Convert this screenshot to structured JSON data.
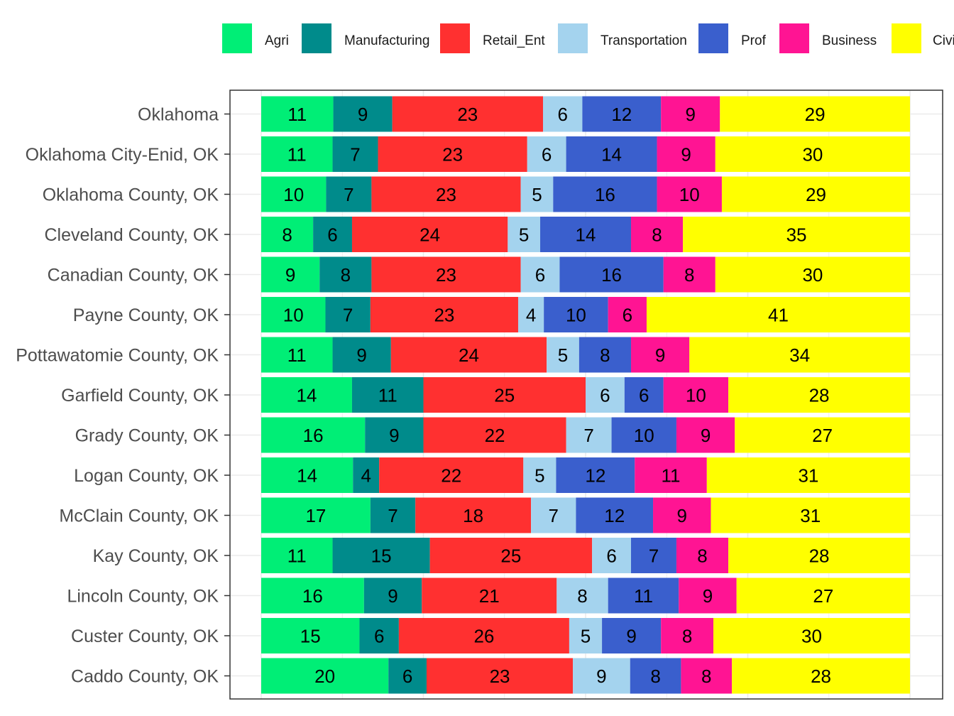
{
  "chart_data": {
    "type": "bar",
    "orientation": "horizontal",
    "stacked": true,
    "normalized": true,
    "title": "",
    "xlabel": "",
    "ylabel": "",
    "grid": true,
    "legend_position": "top",
    "categories": [
      "Oklahoma",
      "Oklahoma City-Enid, OK",
      "Oklahoma County, OK",
      "Cleveland County, OK",
      "Canadian County, OK",
      "Payne County, OK",
      "Pottawatomie County, OK",
      "Garfield County, OK",
      "Grady County, OK",
      "Logan County, OK",
      "McClain County, OK",
      "Kay County, OK",
      "Lincoln County, OK",
      "Custer County, OK",
      "Caddo County, OK"
    ],
    "series": [
      {
        "name": "Agri",
        "color": "#00EE76",
        "values": [
          11,
          11,
          10,
          8,
          9,
          10,
          11,
          14,
          16,
          14,
          17,
          11,
          16,
          15,
          20
        ]
      },
      {
        "name": "Manufacturing",
        "color": "#008B8B",
        "values": [
          9,
          7,
          7,
          6,
          8,
          7,
          9,
          11,
          9,
          4,
          7,
          15,
          9,
          6,
          6
        ]
      },
      {
        "name": "Retail_Ent",
        "color": "#FF3030",
        "values": [
          23,
          23,
          23,
          24,
          23,
          23,
          24,
          25,
          22,
          22,
          18,
          25,
          21,
          26,
          23
        ]
      },
      {
        "name": "Transportation",
        "color": "#A4D3EE",
        "values": [
          6,
          6,
          5,
          5,
          6,
          4,
          5,
          6,
          7,
          5,
          7,
          6,
          8,
          5,
          9
        ]
      },
      {
        "name": "Prof",
        "color": "#3A5FCD",
        "values": [
          12,
          14,
          16,
          14,
          16,
          10,
          8,
          6,
          10,
          12,
          12,
          7,
          11,
          9,
          8
        ]
      },
      {
        "name": "Business",
        "color": "#FF1493",
        "values": [
          9,
          9,
          10,
          8,
          8,
          6,
          9,
          10,
          9,
          11,
          9,
          8,
          9,
          8,
          8
        ]
      },
      {
        "name": "Civic",
        "legend_label": "Civi",
        "color": "#FFFF00",
        "values": [
          29,
          30,
          29,
          35,
          30,
          41,
          34,
          28,
          27,
          31,
          31,
          28,
          27,
          30,
          28
        ]
      }
    ]
  }
}
